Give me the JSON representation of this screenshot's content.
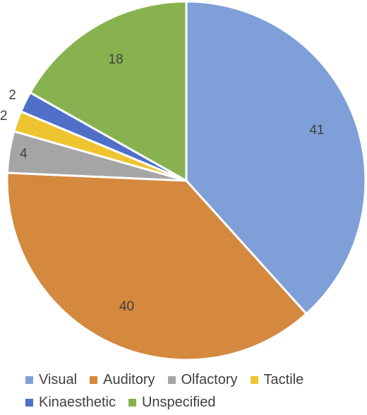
{
  "chart_data": {
    "type": "pie",
    "categories": [
      "Visual",
      "Auditory",
      "Olfactory",
      "Tactile",
      "Kinaesthetic",
      "Unspecified"
    ],
    "values": [
      41,
      40,
      4,
      2,
      2,
      18
    ],
    "colors": [
      "#7F9FD8",
      "#D4893F",
      "#A5A5A5",
      "#EEC531",
      "#4F6FC8",
      "#88B24F"
    ],
    "start_angle": "12 o'clock, clockwise",
    "legend_position": "bottom"
  }
}
